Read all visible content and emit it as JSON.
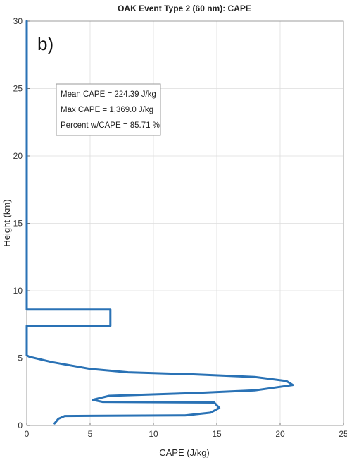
{
  "chart_data": {
    "type": "line",
    "title": "OAK Event Type 2 (60 nm): CAPE",
    "panel_label": "b)",
    "xlabel": "CAPE (J/kg)",
    "ylabel": "Height (km)",
    "xlim": [
      0,
      25
    ],
    "ylim": [
      0,
      30
    ],
    "xticks": [
      0,
      5,
      10,
      15,
      20,
      25
    ],
    "yticks": [
      0,
      5,
      10,
      15,
      20,
      25,
      30
    ],
    "grid": true,
    "annotations": [
      "Mean CAPE = 224.39 J/kg",
      "Max CAPE = 1,369.0 J/kg",
      "Percent w/CAPE = 85.71 %"
    ],
    "line_color": "#2a72b5",
    "series": [
      {
        "x": [
          2.2,
          2.5,
          3.0,
          12.5,
          14.5,
          15.2,
          14.8,
          6.0,
          5.2,
          6.5,
          13.0,
          18.0,
          21.0,
          20.5,
          18.0,
          13.0,
          8.0,
          5.0,
          2.0,
          0.2,
          0.0,
          0.0,
          6.6,
          6.6,
          0.0,
          0.0,
          0.0
        ],
        "y": [
          0.15,
          0.5,
          0.7,
          0.75,
          0.95,
          1.3,
          1.7,
          1.75,
          1.9,
          2.2,
          2.4,
          2.6,
          3.0,
          3.3,
          3.6,
          3.8,
          3.95,
          4.2,
          4.7,
          5.1,
          5.2,
          7.4,
          7.4,
          8.6,
          8.6,
          8.7,
          30.0
        ]
      }
    ]
  }
}
